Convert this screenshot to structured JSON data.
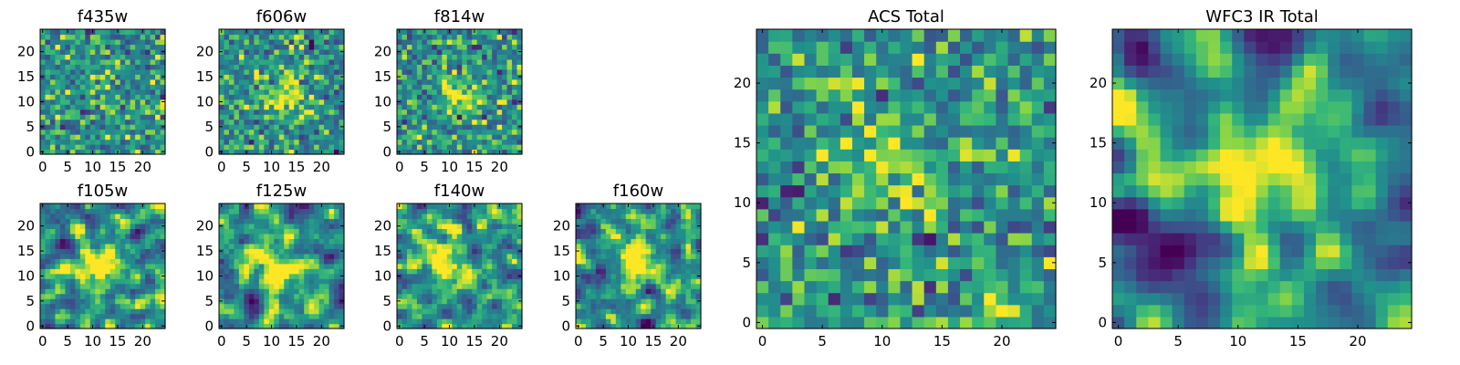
{
  "chart_data": [
    {
      "type": "heatmap",
      "title": "f435w",
      "grid_size": 25,
      "xlim": [
        0,
        24
      ],
      "ylim": [
        0,
        24
      ],
      "xticks": [
        0,
        5,
        10,
        15,
        20
      ],
      "yticks": [
        0,
        5,
        10,
        15,
        20
      ],
      "colormap": "viridis",
      "smooth": 0,
      "spots": [
        [
          13,
          11,
          0.15,
          3
        ]
      ]
    },
    {
      "type": "heatmap",
      "title": "f606w",
      "grid_size": 25,
      "xlim": [
        0,
        24
      ],
      "ylim": [
        0,
        24
      ],
      "xticks": [
        0,
        5,
        10,
        15,
        20
      ],
      "yticks": [
        0,
        5,
        10,
        15,
        20
      ],
      "colormap": "viridis",
      "smooth": 0,
      "spots": [
        [
          13,
          12,
          0.3,
          3
        ]
      ]
    },
    {
      "type": "heatmap",
      "title": "f814w",
      "grid_size": 25,
      "xlim": [
        0,
        24
      ],
      "ylim": [
        0,
        24
      ],
      "xticks": [
        0,
        5,
        10,
        15,
        20
      ],
      "yticks": [
        0,
        5,
        10,
        15,
        20
      ],
      "colormap": "viridis",
      "smooth": 0,
      "spots": [
        [
          12,
          12,
          0.3,
          3
        ]
      ]
    },
    {
      "type": "heatmap",
      "title": "f105w",
      "grid_size": 25,
      "xlim": [
        0,
        24
      ],
      "ylim": [
        0,
        24
      ],
      "xticks": [
        0,
        5,
        10,
        15,
        20
      ],
      "yticks": [
        0,
        5,
        10,
        15,
        20
      ],
      "colormap": "viridis",
      "smooth": 1,
      "spots": [
        [
          12,
          12,
          0.45,
          3
        ],
        [
          4,
          17,
          -0.5,
          1.2
        ]
      ]
    },
    {
      "type": "heatmap",
      "title": "f125w",
      "grid_size": 25,
      "xlim": [
        0,
        24
      ],
      "ylim": [
        0,
        24
      ],
      "xticks": [
        0,
        5,
        10,
        15,
        20
      ],
      "yticks": [
        0,
        5,
        10,
        15,
        20
      ],
      "colormap": "viridis",
      "smooth": 1,
      "spots": [
        [
          12,
          11,
          0.4,
          3.5
        ],
        [
          6,
          5,
          -0.5,
          1.5
        ]
      ]
    },
    {
      "type": "heatmap",
      "title": "f140w",
      "grid_size": 25,
      "xlim": [
        0,
        24
      ],
      "ylim": [
        0,
        24
      ],
      "xticks": [
        0,
        5,
        10,
        15,
        20
      ],
      "yticks": [
        0,
        5,
        10,
        15,
        20
      ],
      "colormap": "viridis",
      "smooth": 1,
      "spots": [
        [
          10,
          15,
          0.35,
          3
        ],
        [
          13,
          10,
          0.3,
          3
        ]
      ]
    },
    {
      "type": "heatmap",
      "title": "f160w",
      "grid_size": 25,
      "xlim": [
        0,
        24
      ],
      "ylim": [
        0,
        24
      ],
      "xticks": [
        0,
        5,
        10,
        15,
        20
      ],
      "yticks": [
        0,
        5,
        10,
        15,
        20
      ],
      "colormap": "viridis",
      "smooth": 1,
      "spots": [
        [
          12,
          13,
          0.45,
          3
        ],
        [
          14,
          1,
          -0.5,
          1.5
        ]
      ]
    },
    {
      "type": "heatmap",
      "title": "ACS Total",
      "grid_size": 25,
      "xlim": [
        0,
        24
      ],
      "ylim": [
        0,
        24
      ],
      "xticks": [
        0,
        5,
        10,
        15,
        20
      ],
      "yticks": [
        0,
        5,
        10,
        15,
        20
      ],
      "colormap": "viridis",
      "smooth": 0,
      "spots": [
        [
          12,
          13,
          0.3,
          3
        ],
        [
          19,
          2,
          0.35,
          1.2
        ],
        [
          7,
          20,
          0.3,
          1
        ]
      ]
    },
    {
      "type": "heatmap",
      "title": "WFC3 IR Total",
      "grid_size": 25,
      "xlim": [
        0,
        24
      ],
      "ylim": [
        0,
        24
      ],
      "xticks": [
        0,
        5,
        10,
        15,
        20
      ],
      "yticks": [
        0,
        5,
        10,
        15,
        20
      ],
      "colormap": "viridis",
      "smooth": 2,
      "spots": [
        [
          12,
          12,
          0.55,
          3
        ],
        [
          5,
          6,
          -0.8,
          1.5
        ],
        [
          13,
          23,
          -0.6,
          2
        ],
        [
          1,
          22,
          -0.6,
          1.5
        ],
        [
          1,
          10,
          -0.5,
          1.5
        ]
      ]
    }
  ]
}
